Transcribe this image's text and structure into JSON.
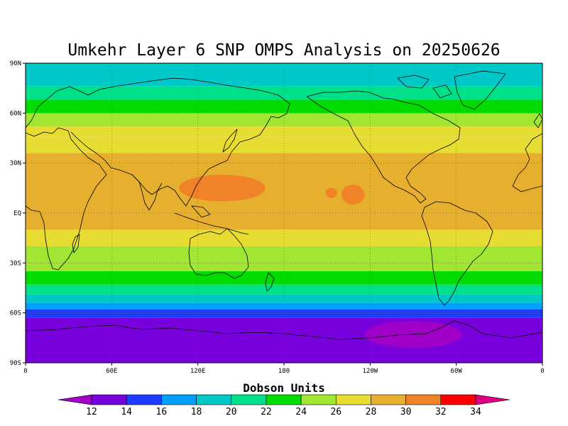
{
  "title": "Umkehr Layer 6 SNP OMPS Analysis on 20250626",
  "map": {
    "projection": "cylindrical-equidistant",
    "lon_range": [
      0,
      360
    ],
    "lat_range": [
      -90,
      90
    ],
    "grid": "dotted",
    "y_ticks": [
      {
        "lat": 90,
        "label": "90N"
      },
      {
        "lat": 60,
        "label": "60N"
      },
      {
        "lat": 30,
        "label": "30N"
      },
      {
        "lat": 0,
        "label": "EQ"
      },
      {
        "lat": -30,
        "label": "30S"
      },
      {
        "lat": -60,
        "label": "60S"
      },
      {
        "lat": -90,
        "label": "90S"
      }
    ],
    "x_ticks": [
      {
        "lon": 0,
        "label": "0"
      },
      {
        "lon": 60,
        "label": "60E"
      },
      {
        "lon": 120,
        "label": "120E"
      },
      {
        "lon": 180,
        "label": "180"
      },
      {
        "lon": 240,
        "label": "120W"
      },
      {
        "lon": 300,
        "label": "60W"
      },
      {
        "lon": 360,
        "label": "0"
      }
    ],
    "bands": [
      {
        "lat_top": 90,
        "lat_bot": 76,
        "value": 19,
        "color": "#00c8c8"
      },
      {
        "lat_top": 76,
        "lat_bot": 68,
        "value": 21,
        "color": "#00e08a"
      },
      {
        "lat_top": 68,
        "lat_bot": 60,
        "value": 23,
        "color": "#00dc00"
      },
      {
        "lat_top": 60,
        "lat_bot": 52,
        "value": 25,
        "color": "#a0e632"
      },
      {
        "lat_top": 52,
        "lat_bot": 46,
        "value": 27,
        "color": "#e6dc32"
      },
      {
        "lat_top": 46,
        "lat_bot": 36,
        "value": 27,
        "color": "#e6dc32"
      },
      {
        "lat_top": 36,
        "lat_bot": -10,
        "value": 29,
        "color": "#e6af2d"
      },
      {
        "lat_top": -10,
        "lat_bot": -20,
        "value": 27,
        "color": "#e6dc32"
      },
      {
        "lat_top": -20,
        "lat_bot": -35,
        "value": 25,
        "color": "#a0e632"
      },
      {
        "lat_top": -35,
        "lat_bot": -43,
        "value": 23,
        "color": "#00dc00"
      },
      {
        "lat_top": -43,
        "lat_bot": -49,
        "value": 21,
        "color": "#00e08a"
      },
      {
        "lat_top": -49,
        "lat_bot": -54,
        "value": 19,
        "color": "#00c8c8"
      },
      {
        "lat_top": -54,
        "lat_bot": -58,
        "value": 17,
        "color": "#00a0ff"
      },
      {
        "lat_top": -58,
        "lat_bot": -63,
        "value": 15,
        "color": "#1e3cff"
      },
      {
        "lat_top": -63,
        "lat_bot": -90,
        "value": 13,
        "color": "#7800dc"
      }
    ],
    "highs": [
      {
        "lon": 137,
        "lat": 15,
        "rlon": 30,
        "rlat": 8,
        "value": 31,
        "color": "#f08228"
      },
      {
        "lon": 213,
        "lat": 12,
        "rlon": 4,
        "rlat": 3,
        "value": 31,
        "color": "#f08228"
      },
      {
        "lon": 228,
        "lat": 11,
        "rlon": 8,
        "rlat": 6,
        "value": 31,
        "color": "#f08228"
      }
    ],
    "lows": [
      {
        "lon": 270,
        "lat": -73,
        "rlon": 34,
        "rlat": 8,
        "value": 11,
        "color": "#a000c8"
      }
    ]
  },
  "colorbar": {
    "title": "Dobson Units",
    "ticks": [
      "12",
      "14",
      "16",
      "18",
      "20",
      "22",
      "24",
      "26",
      "28",
      "30",
      "32",
      "34"
    ],
    "under_color": "#a000c8",
    "over_color": "#dc0082",
    "bins": [
      "#7800dc",
      "#1e3cff",
      "#00a0ff",
      "#00c8c8",
      "#00e08a",
      "#00dc00",
      "#a0e632",
      "#e6dc32",
      "#e6af2d",
      "#f08228",
      "#fa0000"
    ]
  }
}
